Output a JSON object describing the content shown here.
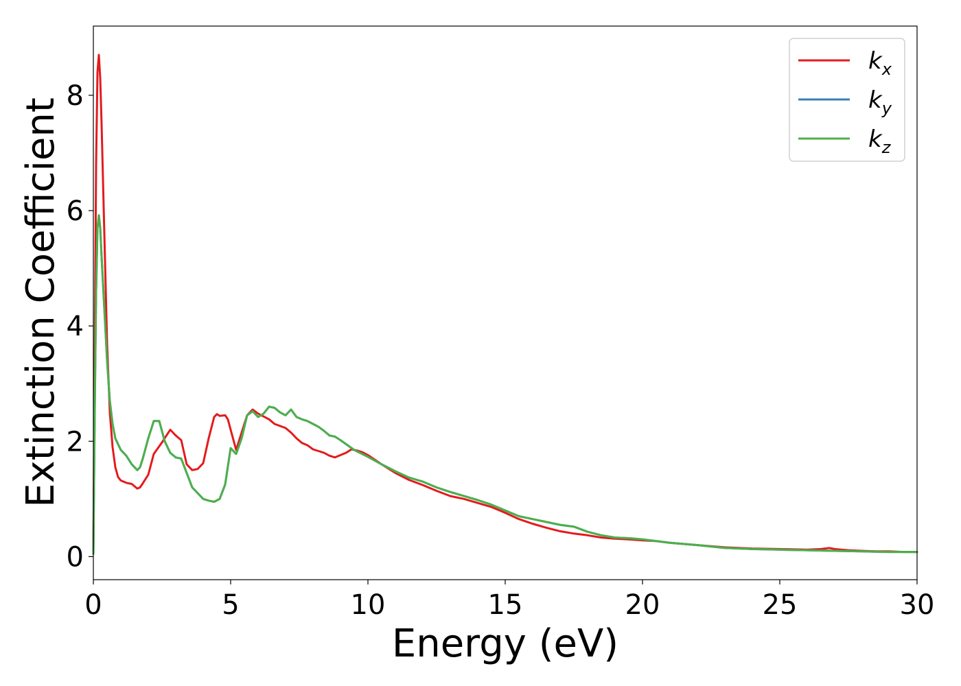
{
  "chart_data": {
    "type": "line",
    "xlabel": "Energy (eV)",
    "ylabel": "Extinction Coefficient",
    "xlim": [
      0,
      30
    ],
    "ylim": [
      -0.4,
      9.2
    ],
    "xticks": [
      "0",
      "5",
      "10",
      "15",
      "20",
      "25",
      "30"
    ],
    "yticks": [
      "0",
      "2",
      "4",
      "6",
      "8"
    ],
    "grid": false,
    "legend_position": "top-right",
    "series": [
      {
        "name": "k",
        "subscript": "x",
        "color": "#e41a1c",
        "x": [
          0,
          0.05,
          0.1,
          0.15,
          0.2,
          0.25,
          0.3,
          0.4,
          0.5,
          0.6,
          0.7,
          0.8,
          0.9,
          1.0,
          1.1,
          1.2,
          1.4,
          1.6,
          1.7,
          1.8,
          2.0,
          2.2,
          2.5,
          2.8,
          3.0,
          3.2,
          3.4,
          3.6,
          3.8,
          4.0,
          4.2,
          4.4,
          4.5,
          4.6,
          4.8,
          4.9,
          5.0,
          5.2,
          5.4,
          5.6,
          5.8,
          6.0,
          6.2,
          6.4,
          6.6,
          7.0,
          7.2,
          7.4,
          7.6,
          7.8,
          8.0,
          8.2,
          8.4,
          8.6,
          8.8,
          9.0,
          9.2,
          9.4,
          9.6,
          9.8,
          10.0,
          10.5,
          11.0,
          11.5,
          12.0,
          12.5,
          13.0,
          13.5,
          14.0,
          14.5,
          15.0,
          15.5,
          16.0,
          16.5,
          17.0,
          17.5,
          18.0,
          18.5,
          19.0,
          19.5,
          20.0,
          20.5,
          21.0,
          22.0,
          23.0,
          24.0,
          25.0,
          26.0,
          26.5,
          26.8,
          27.0,
          27.5,
          28.0,
          28.5,
          29.0,
          29.5,
          30.0
        ],
        "y": [
          0.05,
          3.5,
          6.8,
          8.4,
          8.7,
          8.3,
          7.5,
          5.6,
          3.7,
          2.5,
          1.9,
          1.55,
          1.38,
          1.32,
          1.3,
          1.28,
          1.26,
          1.18,
          1.2,
          1.27,
          1.42,
          1.78,
          1.98,
          2.2,
          2.1,
          2.02,
          1.6,
          1.5,
          1.52,
          1.62,
          2.05,
          2.42,
          2.47,
          2.44,
          2.45,
          2.38,
          2.2,
          1.85,
          2.15,
          2.45,
          2.55,
          2.48,
          2.43,
          2.38,
          2.3,
          2.23,
          2.15,
          2.05,
          1.97,
          1.93,
          1.86,
          1.83,
          1.8,
          1.75,
          1.72,
          1.76,
          1.8,
          1.86,
          1.84,
          1.81,
          1.76,
          1.6,
          1.45,
          1.33,
          1.24,
          1.14,
          1.05,
          1.0,
          0.93,
          0.86,
          0.76,
          0.65,
          0.57,
          0.5,
          0.44,
          0.4,
          0.37,
          0.33,
          0.31,
          0.3,
          0.28,
          0.27,
          0.24,
          0.2,
          0.16,
          0.14,
          0.13,
          0.12,
          0.13,
          0.15,
          0.13,
          0.11,
          0.1,
          0.09,
          0.09,
          0.08,
          0.08
        ]
      },
      {
        "name": "k",
        "subscript": "y",
        "color": "#377eb8",
        "x": [
          0,
          0.05,
          0.1,
          0.15,
          0.2,
          0.25,
          0.3,
          0.4,
          0.5,
          0.6,
          0.7,
          0.8,
          0.9,
          1.0,
          1.2,
          1.4,
          1.6,
          1.7,
          1.8,
          2.0,
          2.2,
          2.4,
          2.6,
          2.8,
          3.0,
          3.2,
          3.4,
          3.6,
          3.8,
          4.0,
          4.2,
          4.4,
          4.6,
          4.8,
          5.0,
          5.2,
          5.4,
          5.6,
          5.8,
          6.0,
          6.2,
          6.4,
          6.6,
          6.8,
          7.0,
          7.2,
          7.4,
          7.6,
          7.8,
          8.0,
          8.2,
          8.4,
          8.6,
          8.8,
          9.0,
          9.5,
          10.0,
          10.5,
          11.0,
          11.5,
          12.0,
          12.5,
          13.0,
          13.5,
          14.0,
          14.5,
          15.0,
          15.5,
          16.0,
          16.5,
          17.0,
          17.5,
          18.0,
          18.5,
          19.0,
          19.5,
          20.0,
          20.5,
          21.0,
          22.0,
          23.0,
          24.0,
          25.0,
          26.0,
          27.0,
          28.0,
          29.0,
          30.0
        ],
        "y": [
          0.05,
          2.5,
          4.6,
          5.7,
          5.92,
          5.7,
          5.2,
          4.3,
          3.4,
          2.7,
          2.3,
          2.05,
          1.95,
          1.85,
          1.75,
          1.6,
          1.5,
          1.55,
          1.7,
          2.05,
          2.35,
          2.35,
          2.0,
          1.8,
          1.72,
          1.7,
          1.45,
          1.2,
          1.1,
          1.0,
          0.97,
          0.95,
          1.0,
          1.25,
          1.88,
          1.78,
          2.05,
          2.45,
          2.52,
          2.42,
          2.48,
          2.6,
          2.58,
          2.5,
          2.45,
          2.55,
          2.42,
          2.38,
          2.35,
          2.3,
          2.25,
          2.18,
          2.1,
          2.08,
          2.02,
          1.85,
          1.73,
          1.6,
          1.48,
          1.37,
          1.3,
          1.2,
          1.12,
          1.05,
          0.98,
          0.9,
          0.8,
          0.7,
          0.65,
          0.6,
          0.55,
          0.52,
          0.43,
          0.37,
          0.33,
          0.32,
          0.3,
          0.27,
          0.24,
          0.2,
          0.15,
          0.13,
          0.12,
          0.11,
          0.1,
          0.09,
          0.08,
          0.08
        ]
      },
      {
        "name": "k",
        "subscript": "z",
        "color": "#4daf4a",
        "x": [
          0,
          0.05,
          0.1,
          0.15,
          0.2,
          0.25,
          0.3,
          0.4,
          0.5,
          0.6,
          0.7,
          0.8,
          0.9,
          1.0,
          1.2,
          1.4,
          1.6,
          1.7,
          1.8,
          2.0,
          2.2,
          2.4,
          2.6,
          2.8,
          3.0,
          3.2,
          3.4,
          3.6,
          3.8,
          4.0,
          4.2,
          4.4,
          4.6,
          4.8,
          5.0,
          5.2,
          5.4,
          5.6,
          5.8,
          6.0,
          6.2,
          6.4,
          6.6,
          6.8,
          7.0,
          7.2,
          7.4,
          7.6,
          7.8,
          8.0,
          8.2,
          8.4,
          8.6,
          8.8,
          9.0,
          9.5,
          10.0,
          10.5,
          11.0,
          11.5,
          12.0,
          12.5,
          13.0,
          13.5,
          14.0,
          14.5,
          15.0,
          15.5,
          16.0,
          16.5,
          17.0,
          17.5,
          18.0,
          18.5,
          19.0,
          19.5,
          20.0,
          20.5,
          21.0,
          22.0,
          23.0,
          24.0,
          25.0,
          26.0,
          27.0,
          28.0,
          29.0,
          30.0
        ],
        "y": [
          0.05,
          2.5,
          4.6,
          5.7,
          5.92,
          5.7,
          5.2,
          4.3,
          3.4,
          2.7,
          2.3,
          2.05,
          1.95,
          1.85,
          1.75,
          1.6,
          1.5,
          1.55,
          1.7,
          2.05,
          2.35,
          2.35,
          2.0,
          1.8,
          1.72,
          1.7,
          1.45,
          1.2,
          1.1,
          1.0,
          0.97,
          0.95,
          1.0,
          1.25,
          1.88,
          1.78,
          2.05,
          2.45,
          2.52,
          2.42,
          2.48,
          2.6,
          2.58,
          2.5,
          2.45,
          2.55,
          2.42,
          2.38,
          2.35,
          2.3,
          2.25,
          2.18,
          2.1,
          2.08,
          2.02,
          1.85,
          1.73,
          1.6,
          1.48,
          1.37,
          1.3,
          1.2,
          1.12,
          1.05,
          0.98,
          0.9,
          0.8,
          0.7,
          0.65,
          0.6,
          0.55,
          0.52,
          0.43,
          0.37,
          0.33,
          0.32,
          0.3,
          0.27,
          0.24,
          0.2,
          0.15,
          0.13,
          0.12,
          0.11,
          0.1,
          0.09,
          0.08,
          0.08
        ]
      }
    ]
  }
}
